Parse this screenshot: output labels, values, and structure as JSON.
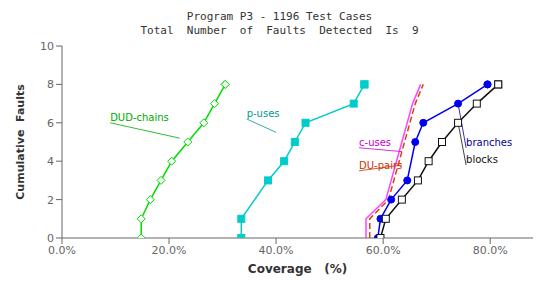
{
  "chart_data": {
    "type": "line",
    "title": "Program P3 - 1196 Test Cases",
    "subtitle": "Total  Number  of  Faults  Detected  Is  9",
    "x_label": "Coverage   (%)",
    "y_label": "Cumulative  Faults",
    "xlim": [
      0.0,
      0.88
    ],
    "ylim": [
      0,
      10
    ],
    "xticks": [
      {
        "value": 0.0,
        "label": "0.0%"
      },
      {
        "value": 0.2,
        "label": "20.0%"
      },
      {
        "value": 0.4,
        "label": "40.0%"
      },
      {
        "value": 0.6,
        "label": "60.0%"
      },
      {
        "value": 0.8,
        "label": "80.0%"
      }
    ],
    "yticks": [
      0,
      2,
      4,
      6,
      8,
      10
    ],
    "grid": false,
    "series": [
      {
        "name": "DUD-chains",
        "color": "#00dd00",
        "marker": "diamond_open",
        "line_style": "solid",
        "x": [
          0.148,
          0.148,
          0.165,
          0.185,
          0.205,
          0.235,
          0.265,
          0.285,
          0.305,
          0.305
        ],
        "values": [
          0,
          1,
          2,
          3,
          4,
          5,
          6,
          7,
          8,
          8
        ]
      },
      {
        "name": "p-uses",
        "color": "#00cccc",
        "marker": "square",
        "line_style": "solid",
        "x": [
          0.335,
          0.335,
          0.385,
          0.415,
          0.435,
          0.455,
          0.545,
          0.565,
          0.565
        ],
        "values": [
          0,
          1,
          3,
          4,
          5,
          6,
          7,
          8,
          8
        ]
      },
      {
        "name": "c-uses",
        "color": "#ff44ff",
        "marker": "none",
        "line_style": "solid",
        "x": [
          0.568,
          0.568,
          0.605,
          0.625,
          0.645,
          0.655,
          0.67,
          0.67
        ],
        "values": [
          0,
          1,
          2,
          4,
          6,
          7,
          8,
          8
        ]
      },
      {
        "name": "DU-pairs",
        "color": "#dd4400",
        "marker": "none",
        "line_style": "dashed",
        "x": [
          0.575,
          0.575,
          0.61,
          0.63,
          0.65,
          0.66,
          0.675,
          0.675
        ],
        "values": [
          0,
          1,
          2,
          4,
          6,
          7,
          8,
          8
        ]
      },
      {
        "name": "branches",
        "color": "#0000ee",
        "marker": "circle",
        "line_style": "solid",
        "x": [
          0.59,
          0.595,
          0.615,
          0.645,
          0.66,
          0.675,
          0.74,
          0.795,
          0.795
        ],
        "values": [
          0,
          1,
          2,
          3,
          5,
          6,
          7,
          8,
          8
        ]
      },
      {
        "name": "blocks",
        "color": "#111111",
        "marker": "square_open",
        "line_style": "solid",
        "x": [
          0.595,
          0.605,
          0.635,
          0.665,
          0.685,
          0.71,
          0.74,
          0.775,
          0.815,
          0.815
        ],
        "values": [
          0,
          1,
          2,
          3,
          4,
          5,
          6,
          7,
          8,
          8
        ]
      }
    ],
    "annotations": [
      {
        "text": "DUD-chains",
        "x": 0.22,
        "y": 5.2,
        "text_x": 0.09,
        "text_y": 6.0,
        "color": "#00aa00"
      },
      {
        "text": "p-uses",
        "x": 0.4,
        "y": 5.5,
        "text_x": 0.345,
        "text_y": 6.2,
        "color": "#009999"
      },
      {
        "text": "c-uses",
        "x": 0.635,
        "y": 4.5,
        "text_x": 0.555,
        "text_y": 4.7,
        "color": "#cc00cc"
      },
      {
        "text": "DU-pairs",
        "x": 0.635,
        "y": 3.8,
        "text_x": 0.555,
        "text_y": 3.5,
        "color": "#cc3300"
      },
      {
        "text": "branches",
        "x": 0.74,
        "y": 7.0,
        "text_x": 0.755,
        "text_y": 4.7,
        "color": "#000099"
      },
      {
        "text": "blocks",
        "x": 0.74,
        "y": 6.0,
        "text_x": 0.755,
        "text_y": 3.8,
        "color": "#111111"
      }
    ]
  }
}
